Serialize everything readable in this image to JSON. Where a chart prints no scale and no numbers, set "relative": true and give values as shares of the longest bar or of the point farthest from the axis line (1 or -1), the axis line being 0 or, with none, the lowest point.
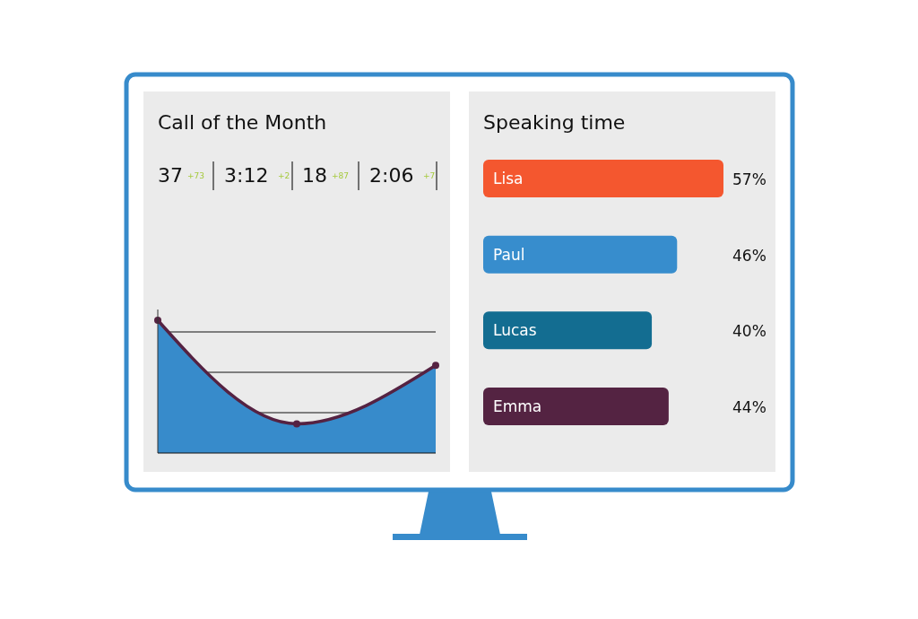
{
  "chart_data": [
    {
      "type": "other",
      "title": "Call of the Month",
      "annotations": [
        "37",
        "+73",
        "3:12",
        "+2",
        "18",
        "+87",
        "2:06",
        "+7"
      ]
    },
    {
      "type": "area",
      "relative": true,
      "categories": [
        null,
        null,
        null
      ],
      "grid": "y",
      "series": [
        {
          "type": "area",
          "color": "#378bcb",
          "values": [
            1,
            0.22,
            0.66
          ]
        },
        {
          "type": "line",
          "color": "#552242",
          "marker": "circle",
          "values": [
            1,
            0.22,
            0.66
          ]
        }
      ]
    },
    {
      "type": "bar",
      "orientation": "horizontal",
      "title": "Speaking time",
      "categories": [
        "Lisa",
        "Paul",
        "Lucas",
        "Emma"
      ],
      "values": [
        57,
        46,
        40,
        44
      ],
      "colors": [
        "#f4572f",
        "#378dcd",
        "#136d91",
        "#542342"
      ],
      "value_labels": [
        "57%",
        "46%",
        "40%",
        "44%"
      ]
    }
  ]
}
